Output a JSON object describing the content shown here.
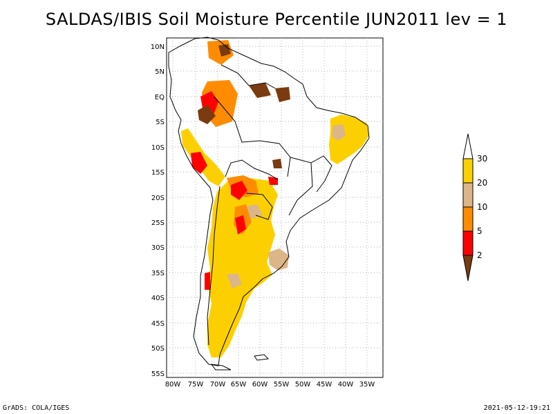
{
  "title": "SALDAS/IBIS Soil Moisture Percentile JUN2011 lev = 1",
  "footer_left": "GrADS: COLA/IGES",
  "footer_right": "2021-05-12-19:21",
  "map": {
    "lon_range": [
      -81,
      -33
    ],
    "lat_range": [
      -56,
      12
    ],
    "lon_ticks": [
      "80W",
      "75W",
      "70W",
      "65W",
      "60W",
      "55W",
      "50W",
      "45W",
      "40W",
      "35W"
    ],
    "lat_ticks": [
      "10N",
      "5N",
      "EQ",
      "5S",
      "10S",
      "15S",
      "20S",
      "25S",
      "30S",
      "35S",
      "40S",
      "45S",
      "50S",
      "55S"
    ],
    "grid": "dotted"
  },
  "legend": {
    "position": "right",
    "labels": [
      "30",
      "20",
      "10",
      "5",
      "2"
    ],
    "colors": {
      "top_arrow": "#ffffff",
      "band_20_30": "#fcd000",
      "band_10_20": "#dcb688",
      "band_5_10": "#ff8c00",
      "band_2_5": "#ff0000",
      "bottom_arrow": "#7a3b10"
    }
  }
}
